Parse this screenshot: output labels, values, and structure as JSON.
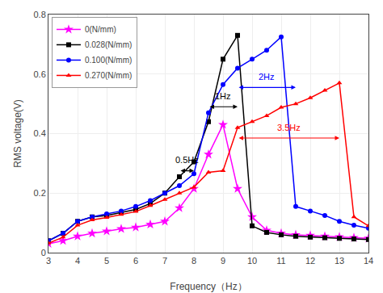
{
  "chart_data": {
    "type": "line",
    "xlabel": "Frequency（Hz）",
    "ylabel": "RMS voltage(V)",
    "xlim": [
      3,
      14
    ],
    "ylim": [
      0,
      0.8
    ],
    "xticks": [
      3,
      4,
      5,
      6,
      7,
      8,
      9,
      10,
      11,
      12,
      13,
      14
    ],
    "yticks": [
      0,
      0.2,
      0.4,
      0.6,
      0.8
    ],
    "grid": true,
    "legend": "upper left",
    "x": [
      3.0,
      3.5,
      4.0,
      4.5,
      5.0,
      5.5,
      6.0,
      6.5,
      7.0,
      7.5,
      8.0,
      8.5,
      9.0,
      9.5,
      10.0,
      10.5,
      11.0,
      11.5,
      12.0,
      12.5,
      13.0,
      13.5,
      14.0
    ],
    "series": [
      {
        "name": "0(N/mm)",
        "color": "#FF00FF",
        "marker": "star",
        "values": [
          0.03,
          0.04,
          0.055,
          0.065,
          0.072,
          0.08,
          0.085,
          0.095,
          0.105,
          0.15,
          0.215,
          0.33,
          0.43,
          0.215,
          0.12,
          0.075,
          0.065,
          0.06,
          0.058,
          0.055,
          0.053,
          0.05,
          0.048
        ]
      },
      {
        "name": "0.028(N/mm)",
        "color": "#000000",
        "marker": "square",
        "values": [
          0.04,
          0.065,
          0.105,
          0.12,
          0.125,
          0.135,
          0.145,
          0.165,
          0.2,
          0.255,
          0.305,
          0.44,
          0.65,
          0.73,
          0.09,
          0.068,
          0.06,
          0.055,
          0.052,
          0.05,
          0.048,
          0.046,
          0.044
        ]
      },
      {
        "name": "0.100(N/mm)",
        "color": "#0000FF",
        "marker": "circle",
        "values": [
          0.04,
          0.065,
          0.105,
          0.12,
          0.13,
          0.14,
          0.155,
          0.175,
          0.2,
          0.225,
          0.265,
          0.47,
          0.565,
          0.62,
          0.65,
          0.68,
          0.725,
          0.155,
          0.14,
          0.125,
          0.105,
          0.092,
          0.082
        ]
      },
      {
        "name": "0.270(N/mm)",
        "color": "#FF0000",
        "marker": "triangle-up",
        "values": [
          0.032,
          0.052,
          0.092,
          0.11,
          0.118,
          0.128,
          0.138,
          0.158,
          0.178,
          0.2,
          0.22,
          0.27,
          0.275,
          0.42,
          0.44,
          0.46,
          0.488,
          0.5,
          0.52,
          0.545,
          0.57,
          0.12,
          0.09
        ]
      }
    ],
    "annotations": [
      {
        "text": "0.5Hz",
        "x1": 7.5,
        "x2": 8.0,
        "y": 0.275,
        "text_y": 0.29,
        "color": "#000000"
      },
      {
        "text": "1Hz",
        "x1": 8.5,
        "x2": 9.5,
        "y": 0.49,
        "text_y": 0.505,
        "color": "#000000"
      },
      {
        "text": "2Hz",
        "x1": 9.5,
        "x2": 11.5,
        "y": 0.555,
        "text_y": 0.57,
        "color": "#0000FF"
      },
      {
        "text": "3.5Hz",
        "x1": 9.5,
        "x2": 13.0,
        "y": 0.385,
        "text_y": 0.398,
        "color": "#FF0000"
      }
    ]
  }
}
